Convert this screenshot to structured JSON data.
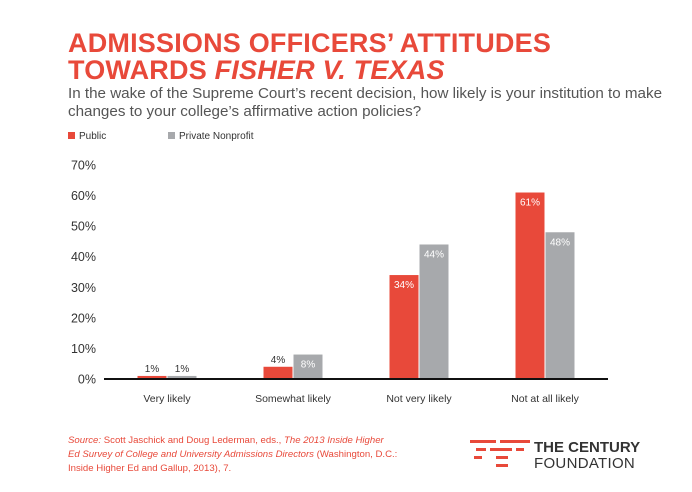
{
  "title": {
    "line1": "ADMISSIONS OFFICERS’ ATTITUDES",
    "line2_prefix": "TOWARDS ",
    "line2_emph": "FISHER V. TEXAS"
  },
  "subtitle": "In the wake of the Supreme Court’s recent decision, how likely is your institution to make changes to your college’s affirmative action policies?",
  "chart_data": {
    "type": "bar",
    "categories": [
      "Very likely",
      "Somewhat likely",
      "Not very likely",
      "Not at all likely"
    ],
    "series": [
      {
        "name": "Public",
        "color": "#e8493a",
        "values": [
          1,
          4,
          34,
          61
        ],
        "labels": [
          "1%",
          "4%",
          "34%",
          "61%"
        ]
      },
      {
        "name": "Private Nonprofit",
        "color": "#a7a9ac",
        "values": [
          1,
          8,
          44,
          48
        ],
        "labels": [
          "1%",
          "8%",
          "44%",
          "48%"
        ]
      }
    ],
    "ylim": [
      0,
      70
    ],
    "yticks": [
      0,
      10,
      20,
      30,
      40,
      50,
      60,
      70
    ],
    "ytick_labels": [
      "0%",
      "10%",
      "20%",
      "30%",
      "40%",
      "50%",
      "60%",
      "70%"
    ],
    "xlabel": "",
    "ylabel": "",
    "grid": false,
    "legend_position": "top-left"
  },
  "source": {
    "prefix": "Source:",
    "authors": " Scott Jaschick and Doug Lederman, eds., ",
    "work": "The 2013 Inside Higher Ed Survey of College and University Admissions Directors",
    "rest": " (Washington, D.C.: Inside Higher Ed and Gallup, 2013), 7."
  },
  "logo": {
    "line1": "THE CENTURY",
    "line2": "FOUNDATION",
    "primary_color": "#e8493a",
    "text_color": "#333333"
  }
}
